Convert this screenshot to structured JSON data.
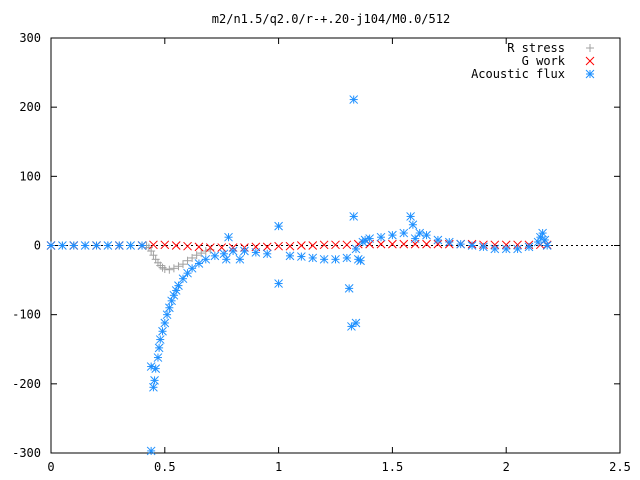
{
  "chart_data": {
    "type": "scatter",
    "title": "m2/n1.5/q2.0/r-+.20-j104/M0.0/512",
    "xlabel": "",
    "ylabel": "",
    "xlim": [
      0,
      2.5
    ],
    "ylim": [
      -300,
      300
    ],
    "x_ticks": [
      0,
      0.5,
      1,
      1.5,
      2,
      2.5
    ],
    "x_tick_labels": [
      "0",
      "0.5",
      "1",
      "1.5",
      "2",
      "2.5"
    ],
    "y_ticks": [
      -300,
      -200,
      -100,
      0,
      100,
      200,
      300
    ],
    "y_tick_labels": [
      "-300",
      "-200",
      "-100",
      "0",
      "100",
      "200",
      "300"
    ],
    "grid": false,
    "legend_position": "top-right",
    "series": [
      {
        "name": "R stress",
        "marker": "plus",
        "color": "#a0a0a0",
        "points": [
          [
            0.0,
            0
          ],
          [
            0.05,
            0
          ],
          [
            0.1,
            0
          ],
          [
            0.15,
            0
          ],
          [
            0.2,
            0
          ],
          [
            0.25,
            0
          ],
          [
            0.3,
            0
          ],
          [
            0.35,
            0
          ],
          [
            0.4,
            0
          ],
          [
            0.42,
            0
          ],
          [
            0.43,
            -3
          ],
          [
            0.44,
            -8
          ],
          [
            0.45,
            -14
          ],
          [
            0.46,
            -20
          ],
          [
            0.47,
            -25
          ],
          [
            0.48,
            -29
          ],
          [
            0.49,
            -32
          ],
          [
            0.5,
            -34
          ],
          [
            0.52,
            -35
          ],
          [
            0.54,
            -33
          ],
          [
            0.56,
            -30
          ],
          [
            0.58,
            -27
          ],
          [
            0.6,
            -22
          ],
          [
            0.62,
            -18
          ],
          [
            0.64,
            -14
          ],
          [
            0.66,
            -11
          ],
          [
            0.68,
            -8
          ],
          [
            0.7,
            -6
          ]
        ]
      },
      {
        "name": "G work",
        "marker": "cross",
        "color": "#ff0000",
        "points": [
          [
            0.0,
            0
          ],
          [
            0.1,
            0
          ],
          [
            0.2,
            0
          ],
          [
            0.3,
            0
          ],
          [
            0.4,
            0
          ],
          [
            0.45,
            1
          ],
          [
            0.5,
            1
          ],
          [
            0.55,
            0
          ],
          [
            0.6,
            -1
          ],
          [
            0.65,
            -2
          ],
          [
            0.7,
            -3
          ],
          [
            0.75,
            -3
          ],
          [
            0.8,
            -3
          ],
          [
            0.85,
            -3
          ],
          [
            0.9,
            -2
          ],
          [
            0.95,
            -2
          ],
          [
            1.0,
            -1
          ],
          [
            1.05,
            -1
          ],
          [
            1.1,
            0
          ],
          [
            1.15,
            0
          ],
          [
            1.2,
            1
          ],
          [
            1.25,
            1
          ],
          [
            1.3,
            1
          ],
          [
            1.35,
            2
          ],
          [
            1.4,
            2
          ],
          [
            1.45,
            2
          ],
          [
            1.5,
            2
          ],
          [
            1.55,
            2
          ],
          [
            1.6,
            2
          ],
          [
            1.65,
            2
          ],
          [
            1.7,
            2
          ],
          [
            1.75,
            2
          ],
          [
            1.8,
            2
          ],
          [
            1.85,
            2
          ],
          [
            1.9,
            1
          ],
          [
            1.95,
            1
          ],
          [
            2.0,
            1
          ],
          [
            2.05,
            1
          ],
          [
            2.1,
            1
          ],
          [
            2.15,
            1
          ],
          [
            2.18,
            1
          ]
        ]
      },
      {
        "name": "Acoustic flux",
        "marker": "star",
        "color": "#1e90ff",
        "points": [
          [
            0.0,
            0
          ],
          [
            0.05,
            0
          ],
          [
            0.1,
            0
          ],
          [
            0.15,
            0
          ],
          [
            0.2,
            0
          ],
          [
            0.25,
            0
          ],
          [
            0.3,
            0
          ],
          [
            0.35,
            0
          ],
          [
            0.4,
            0
          ],
          [
            0.44,
            -175
          ],
          [
            0.44,
            -297
          ],
          [
            0.45,
            -205
          ],
          [
            0.455,
            -195
          ],
          [
            0.46,
            -178
          ],
          [
            0.47,
            -162
          ],
          [
            0.475,
            -148
          ],
          [
            0.48,
            -136
          ],
          [
            0.49,
            -124
          ],
          [
            0.5,
            -112
          ],
          [
            0.51,
            -100
          ],
          [
            0.52,
            -90
          ],
          [
            0.53,
            -80
          ],
          [
            0.54,
            -72
          ],
          [
            0.55,
            -65
          ],
          [
            0.56,
            -58
          ],
          [
            0.58,
            -48
          ],
          [
            0.6,
            -40
          ],
          [
            0.62,
            -33
          ],
          [
            0.65,
            -26
          ],
          [
            0.68,
            -20
          ],
          [
            0.72,
            -15
          ],
          [
            0.76,
            -12
          ],
          [
            0.77,
            -20
          ],
          [
            0.78,
            12
          ],
          [
            0.8,
            -8
          ],
          [
            0.83,
            -20
          ],
          [
            0.85,
            -8
          ],
          [
            0.9,
            -10
          ],
          [
            0.95,
            -12
          ],
          [
            1.0,
            28
          ],
          [
            1.0,
            -55
          ],
          [
            1.05,
            -15
          ],
          [
            1.1,
            -16
          ],
          [
            1.15,
            -18
          ],
          [
            1.2,
            -20
          ],
          [
            1.25,
            -20
          ],
          [
            1.3,
            -18
          ],
          [
            1.31,
            -62
          ],
          [
            1.32,
            -117
          ],
          [
            1.33,
            211
          ],
          [
            1.33,
            42
          ],
          [
            1.34,
            -112
          ],
          [
            1.34,
            -5
          ],
          [
            1.35,
            -20
          ],
          [
            1.36,
            -22
          ],
          [
            1.37,
            5
          ],
          [
            1.38,
            8
          ],
          [
            1.4,
            10
          ],
          [
            1.45,
            12
          ],
          [
            1.5,
            15
          ],
          [
            1.55,
            18
          ],
          [
            1.58,
            42
          ],
          [
            1.59,
            30
          ],
          [
            1.6,
            10
          ],
          [
            1.62,
            18
          ],
          [
            1.65,
            15
          ],
          [
            1.7,
            8
          ],
          [
            1.75,
            5
          ],
          [
            1.8,
            2
          ],
          [
            1.85,
            0
          ],
          [
            1.9,
            -2
          ],
          [
            1.95,
            -5
          ],
          [
            2.0,
            -5
          ],
          [
            2.05,
            -5
          ],
          [
            2.1,
            -2
          ],
          [
            2.14,
            5
          ],
          [
            2.15,
            12
          ],
          [
            2.16,
            18
          ],
          [
            2.17,
            8
          ],
          [
            2.18,
            0
          ]
        ]
      }
    ]
  }
}
